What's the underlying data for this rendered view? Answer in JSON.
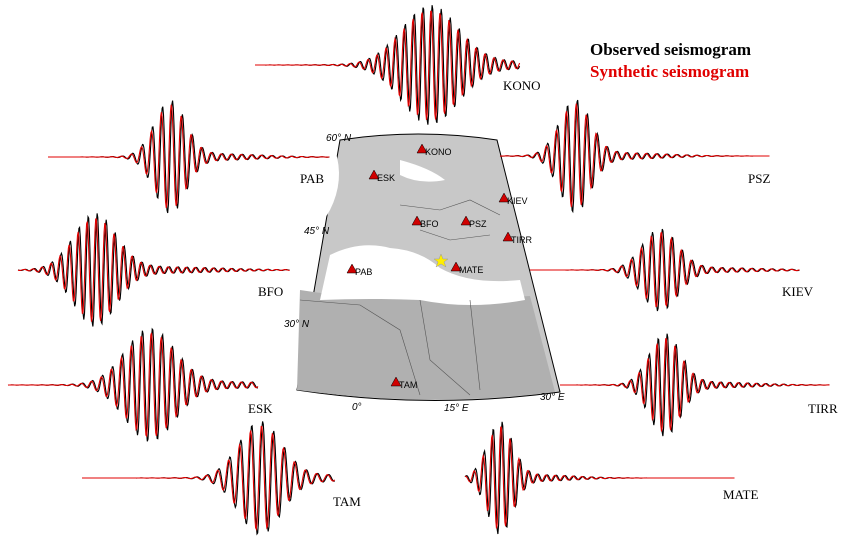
{
  "legend": {
    "observed": "Observed seismogram",
    "synthetic": "Synthetic seismogram"
  },
  "traces": [
    {
      "label": "KONO"
    },
    {
      "label": "PAB"
    },
    {
      "label": "PSZ"
    },
    {
      "label": "BFO"
    },
    {
      "label": "KIEV"
    },
    {
      "label": "ESK"
    },
    {
      "label": "TIRR"
    },
    {
      "label": "TAM"
    },
    {
      "label": "MATE"
    }
  ],
  "map": {
    "stations": [
      "KONO",
      "ESK",
      "BFO",
      "PSZ",
      "KIEV",
      "TIRR",
      "PAB",
      "MATE",
      "TAM"
    ],
    "lat_labels": [
      "60° N",
      "45° N",
      "30° N"
    ],
    "lon_labels": [
      "0°",
      "15° E",
      "30° E"
    ]
  }
}
